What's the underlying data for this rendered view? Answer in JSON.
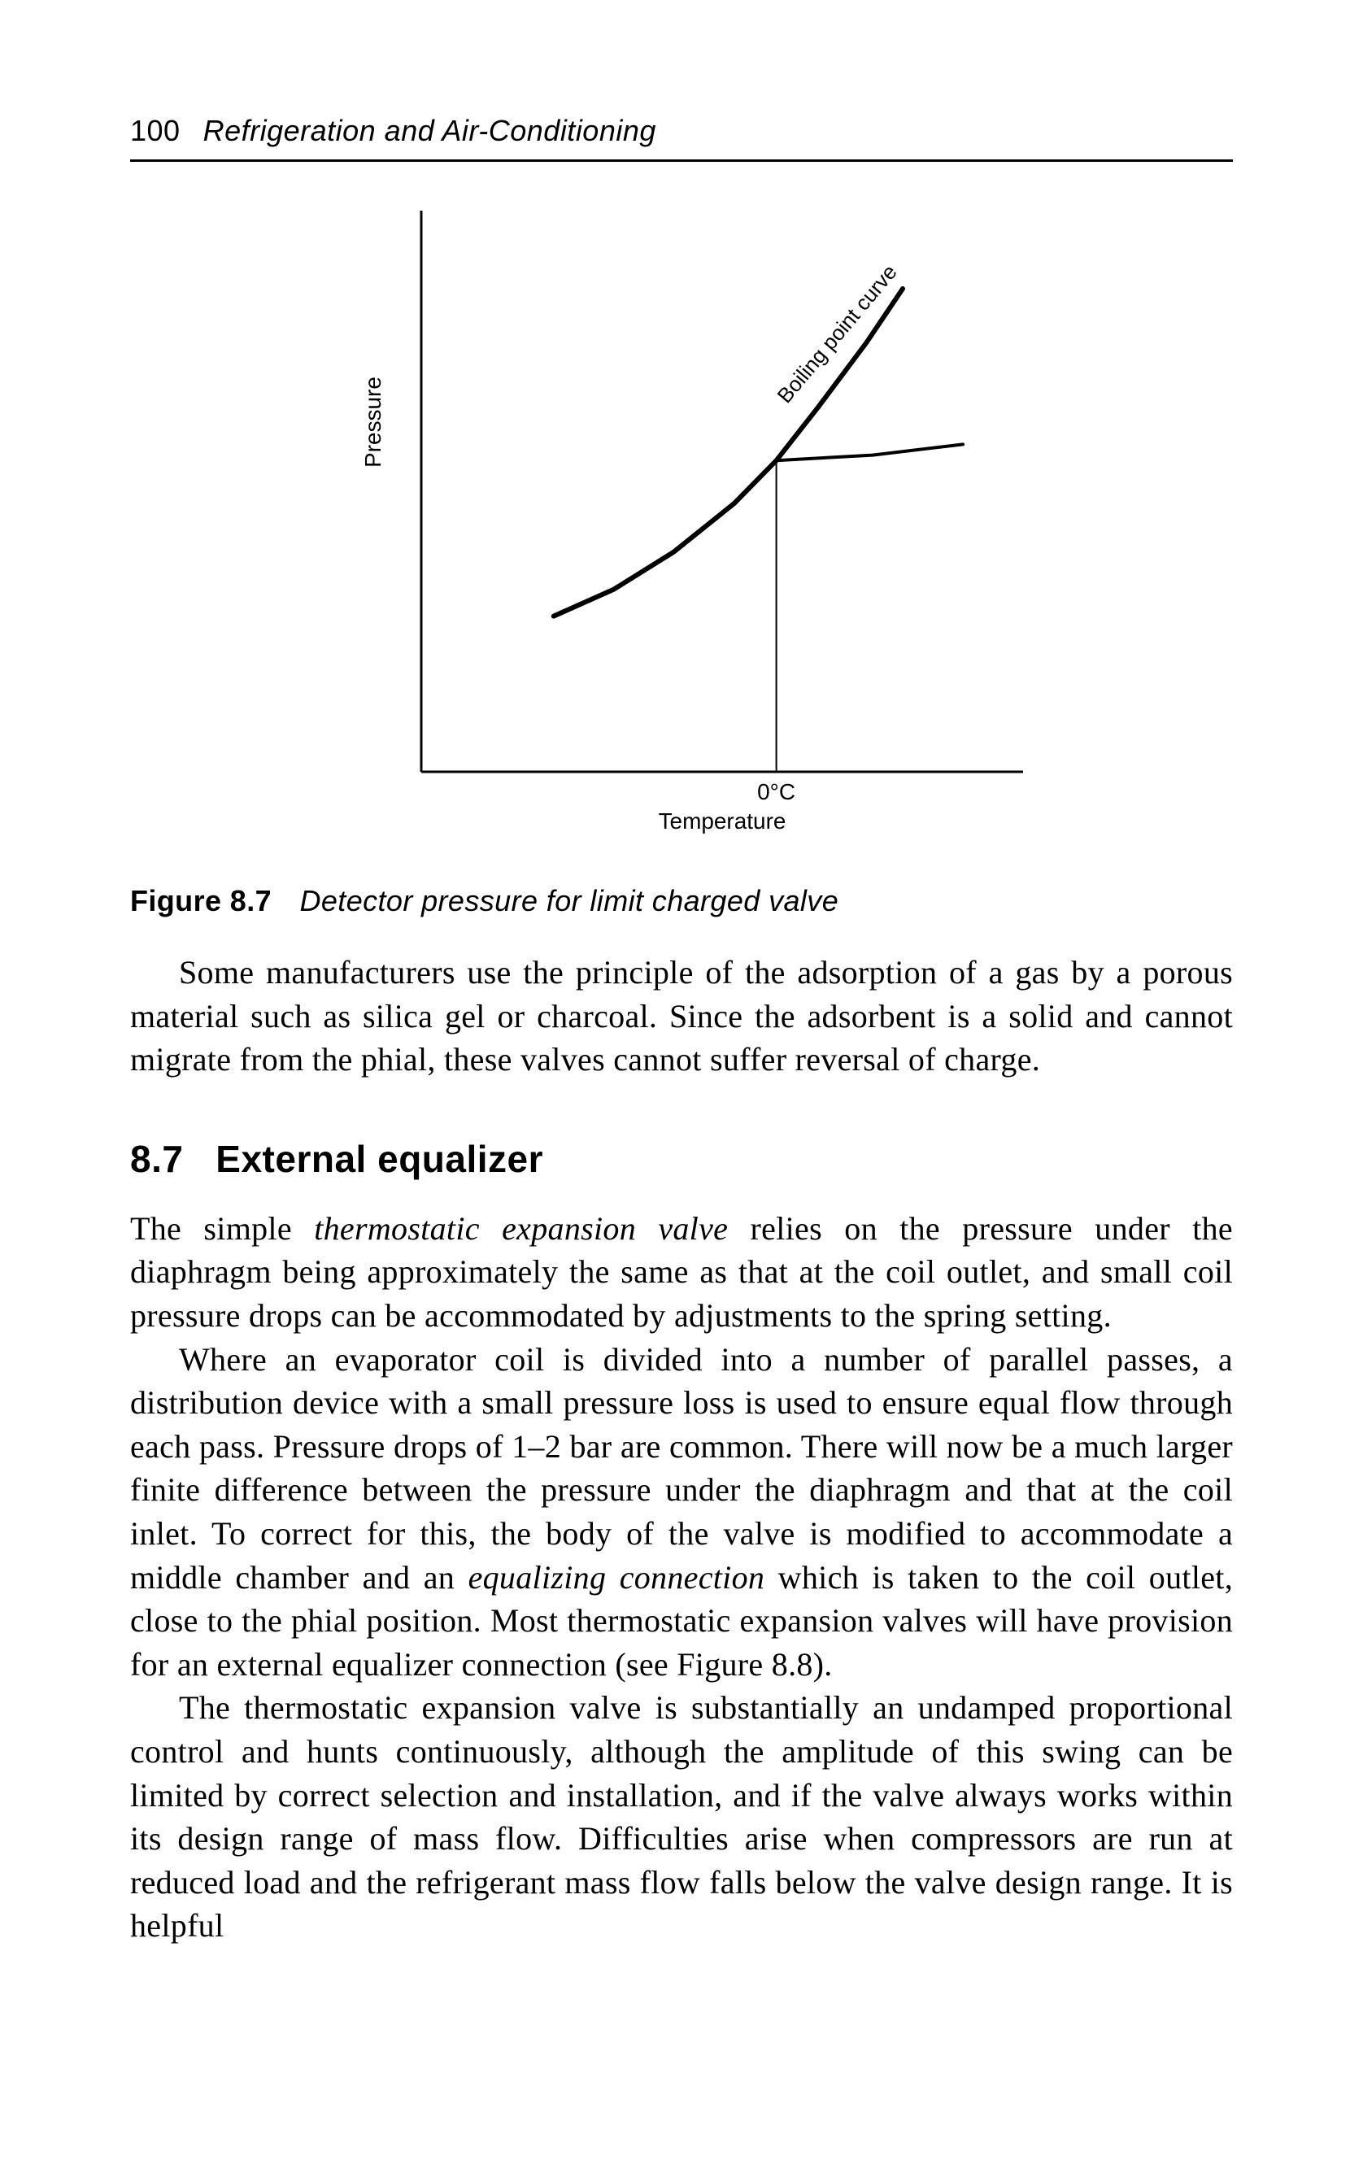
{
  "header": {
    "page_number": "100",
    "book_title": "Refrigeration and Air-Conditioning"
  },
  "figure": {
    "type": "line",
    "label": "Figure 8.7",
    "title": "Detector pressure for limit charged valve",
    "y_axis_label": "Pressure",
    "x_axis_label": "Temperature",
    "x_tick_label": "0°C",
    "curve_label": "Boiling point curve",
    "background_color": "#ffffff",
    "axis_color": "#000000",
    "curve_color": "#000000",
    "axis_width": 3,
    "curve_width": 6,
    "xlim": [
      0,
      100
    ],
    "ylim": [
      0,
      100
    ],
    "boil_curve_points": [
      [
        22,
        29
      ],
      [
        32,
        34
      ],
      [
        42,
        41
      ],
      [
        52,
        50
      ],
      [
        59,
        58
      ],
      [
        66,
        68
      ],
      [
        74,
        80
      ],
      [
        80,
        90
      ]
    ],
    "flat_branch_points": [
      [
        59,
        58
      ],
      [
        75,
        59
      ],
      [
        90,
        61
      ]
    ],
    "x_tick_pos": 59,
    "label_fontsize_pt": 22
  },
  "paragraphs": {
    "p1": "Some manufacturers use the principle of the adsorption of a gas by a porous material such as silica gel or charcoal. Since the adsorbent is a solid and cannot migrate from the phial, these valves cannot suffer reversal of charge."
  },
  "section": {
    "number": "8.7",
    "title": "External equalizer"
  },
  "section_paragraphs": {
    "s1_pre": "The simple ",
    "s1_em": "thermostatic expansion valve",
    "s1_post": " relies on the pressure under the diaphragm being approximately the same as that at the coil outlet, and small coil pressure drops can be accommodated by adjustments to the spring setting.",
    "s2_a": "Where an evaporator coil is divided into a number of parallel passes, a distribution device with a small pressure loss is used to ensure equal flow through each pass. Pressure drops of 1–2 bar are common. There will now be a much larger finite difference between the pressure under the diaphragm and that at the coil inlet. To correct for this, the body of the valve is modified to accommodate a middle chamber and an ",
    "s2_em": "equalizing connection",
    "s2_b": " which is taken to the coil outlet, close to the phial position. Most thermostatic expansion valves will have provision for an external equalizer connection (see Figure 8.8).",
    "s3": "The thermostatic expansion valve is substantially an undamped proportional control and hunts continuously, although the amplitude of this swing can be limited by correct selection and installation, and if the valve always works within its design range of mass flow. Difficulties arise when compressors are run at reduced load and the refrigerant mass flow falls below the valve design range. It is helpful"
  }
}
